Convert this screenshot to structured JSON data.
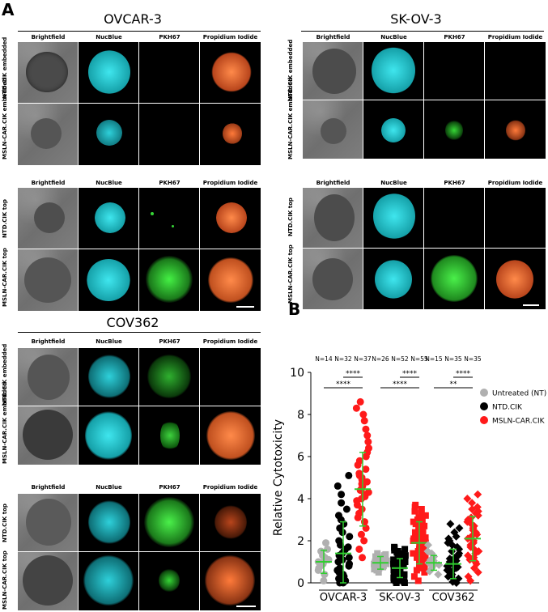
{
  "panel_a_letter": "A",
  "panel_b_letter": "B",
  "ovcar": {
    "title": "OVCAR-3",
    "embedded": {
      "columns": [
        "Brightfield",
        "NucBlue",
        "PKH67",
        "Propidium Iodide"
      ],
      "rows": [
        "NTD.CIK embedded",
        "MSLN-CAR.CIK embedded"
      ]
    },
    "top": {
      "columns": [
        "Brightfield",
        "NucBlue",
        "PKH67",
        "Propidium Iodide"
      ],
      "rows": [
        "NTD.CIK top",
        "MSLN-CAR.CIK top"
      ]
    }
  },
  "skov": {
    "title": "SK-OV-3",
    "embedded": {
      "columns": [
        "Brightfield",
        "NucBlue",
        "PKH67",
        "Propidium Iodide"
      ],
      "rows": [
        "NTD.CIK embedded",
        "MSLN-CAR.CIK embedded"
      ]
    },
    "top": {
      "columns": [
        "Brightfield",
        "NucBlue",
        "PKH67",
        "Propidium Iodide"
      ],
      "rows": [
        "NTD.CIK top",
        "MSLN-CAR.CIK top"
      ]
    }
  },
  "cov": {
    "title": "COV362",
    "embedded": {
      "columns": [
        "Brightfield",
        "NucBlue",
        "PKH67",
        "Propidium Iodide"
      ],
      "rows": [
        "NTD.CIK embedded",
        "MSLN-CAR.CIK embedded"
      ]
    },
    "top": {
      "columns": [
        "Brightfield",
        "NucBlue",
        "PKH67",
        "Propidium Iodide"
      ],
      "rows": [
        "NTD.CIK top",
        "MSLN-CAR.CIK top"
      ]
    }
  },
  "colors": {
    "nucblue": "#22c8d2",
    "pkh67": "#36d636",
    "pi": "#ff7a3a",
    "untreated": "#b0b0b0",
    "ntd": "#000000",
    "msln": "#ff1a1a",
    "mean_line": "#2fcf2f"
  },
  "chart_data": {
    "type": "scatter",
    "ylabel": "Relative Cytotoxicity",
    "ylim": [
      0,
      10
    ],
    "yticks": [
      0,
      2,
      4,
      6,
      8,
      10
    ],
    "categories": [
      "OVCAR-3",
      "SK-OV-3",
      "COV362"
    ],
    "n_labels": [
      "N=14",
      "N=32",
      "N=37",
      "N=26",
      "N=52",
      "N=55",
      "N=15",
      "N=35",
      "N=35"
    ],
    "legend": {
      "placement": "top-right",
      "entries": [
        "Untreated (NT)",
        "NTD.CIK",
        "MSLN-CAR.CIK"
      ]
    },
    "series": [
      {
        "name": "Untreated (NT)",
        "group": "OVCAR-3",
        "mean": 1.0,
        "sd": 0.55,
        "values": [
          0.1,
          0.4,
          0.7,
          0.8,
          0.9,
          1.0,
          1.0,
          1.1,
          1.2,
          1.3,
          1.5,
          1.6,
          1.9,
          0.6
        ]
      },
      {
        "name": "NTD.CIK",
        "group": "OVCAR-3",
        "mean": 1.4,
        "sd": 1.5,
        "values": [
          0,
          0,
          0.1,
          0.2,
          0.3,
          0.4,
          0.5,
          0.6,
          0.8,
          0.9,
          1.0,
          1.1,
          1.2,
          1.3,
          1.4,
          1.5,
          1.6,
          1.8,
          2.0,
          2.2,
          2.4,
          2.6,
          2.8,
          3.0,
          3.2,
          3.5,
          3.8,
          4.2,
          4.6,
          5.1,
          0.7,
          1.7
        ]
      },
      {
        "name": "MSLN-CAR.CIK",
        "group": "OVCAR-3",
        "mean": 4.45,
        "sd": 1.75,
        "values": [
          1.2,
          1.6,
          2.0,
          2.3,
          2.6,
          2.9,
          3.1,
          3.3,
          3.5,
          3.7,
          3.9,
          4.0,
          4.1,
          4.2,
          4.3,
          4.4,
          4.5,
          4.6,
          4.7,
          4.8,
          4.9,
          5.0,
          5.1,
          5.2,
          5.4,
          5.6,
          5.8,
          6.0,
          6.2,
          6.4,
          6.7,
          7.0,
          7.3,
          7.7,
          8.0,
          8.3,
          8.6
        ]
      },
      {
        "name": "Untreated (NT)",
        "group": "SK-OV-3",
        "mean": 0.95,
        "sd": 0.3,
        "values": [
          0.5,
          0.6,
          0.7,
          0.75,
          0.8,
          0.85,
          0.9,
          0.9,
          0.95,
          1.0,
          1.0,
          1.0,
          1.05,
          1.1,
          1.1,
          1.15,
          1.2,
          1.25,
          1.3,
          1.35,
          1.4,
          0.65,
          0.7,
          0.8,
          0.9,
          1.0
        ]
      },
      {
        "name": "NTD.CIK",
        "group": "SK-OV-3",
        "mean": 0.7,
        "sd": 0.45,
        "values": [
          0,
          0,
          0.05,
          0.1,
          0.15,
          0.2,
          0.25,
          0.3,
          0.35,
          0.4,
          0.45,
          0.5,
          0.55,
          0.6,
          0.6,
          0.65,
          0.7,
          0.7,
          0.75,
          0.8,
          0.8,
          0.85,
          0.9,
          0.9,
          0.95,
          1.0,
          1.0,
          1.05,
          1.1,
          1.1,
          1.15,
          1.2,
          1.2,
          1.25,
          1.3,
          1.35,
          1.4,
          1.45,
          1.5,
          1.55,
          1.6,
          1.65,
          1.7,
          0.3,
          0.5,
          0.6,
          0.4,
          0.2,
          0.1,
          0.9,
          1.0,
          0.7
        ]
      },
      {
        "name": "MSLN-CAR.CIK",
        "group": "SK-OV-3",
        "mean": 1.9,
        "sd": 1.0,
        "values": [
          0.1,
          0.3,
          0.5,
          0.7,
          0.9,
          1.0,
          1.1,
          1.2,
          1.3,
          1.4,
          1.5,
          1.6,
          1.7,
          1.75,
          1.8,
          1.85,
          1.9,
          1.95,
          2.0,
          2.05,
          2.1,
          2.15,
          2.2,
          2.25,
          2.3,
          2.35,
          2.4,
          2.5,
          2.6,
          2.7,
          2.8,
          2.9,
          3.0,
          3.1,
          3.2,
          3.3,
          3.4,
          3.5,
          3.6,
          3.7,
          1.0,
          1.2,
          1.4,
          1.6,
          1.8,
          2.0,
          2.2,
          2.4,
          2.6,
          2.8,
          3.0,
          0.6,
          0.8,
          1.9,
          2.1
        ]
      },
      {
        "name": "Untreated (NT)",
        "group": "COV362",
        "mean": 0.95,
        "sd": 0.35,
        "values": [
          0.4,
          0.55,
          0.7,
          0.8,
          0.85,
          0.9,
          0.95,
          1.0,
          1.05,
          1.1,
          1.15,
          1.25,
          1.4,
          1.5,
          1.8
        ]
      },
      {
        "name": "NTD.CIK",
        "group": "COV362",
        "mean": 0.9,
        "sd": 0.7,
        "values": [
          0,
          0.05,
          0.1,
          0.2,
          0.3,
          0.4,
          0.5,
          0.55,
          0.6,
          0.65,
          0.7,
          0.75,
          0.8,
          0.85,
          0.9,
          0.95,
          1.0,
          1.05,
          1.1,
          1.15,
          1.2,
          1.3,
          1.4,
          1.5,
          1.6,
          1.7,
          1.8,
          1.9,
          2.0,
          2.1,
          2.2,
          2.4,
          2.6,
          2.8,
          0.3
        ]
      },
      {
        "name": "MSLN-CAR.CIK",
        "group": "COV362",
        "mean": 2.1,
        "sd": 1.05,
        "values": [
          0.1,
          0.3,
          0.5,
          0.7,
          0.9,
          1.0,
          1.1,
          1.2,
          1.3,
          1.4,
          1.5,
          1.6,
          1.7,
          1.8,
          1.9,
          2.0,
          2.1,
          2.2,
          2.3,
          2.4,
          2.5,
          2.6,
          2.7,
          2.8,
          2.9,
          3.0,
          3.1,
          3.2,
          3.3,
          3.4,
          3.5,
          3.6,
          3.8,
          4.0,
          4.2
        ]
      }
    ],
    "significance": [
      {
        "label": "****",
        "group": "OVCAR-3",
        "between": [
          "Untreated (NT)",
          "MSLN-CAR.CIK"
        ]
      },
      {
        "label": "****",
        "group": "OVCAR-3",
        "between": [
          "NTD.CIK",
          "MSLN-CAR.CIK"
        ]
      },
      {
        "label": "****",
        "group": "SK-OV-3",
        "between": [
          "Untreated (NT)",
          "MSLN-CAR.CIK"
        ]
      },
      {
        "label": "****",
        "group": "SK-OV-3",
        "between": [
          "NTD.CIK",
          "MSLN-CAR.CIK"
        ]
      },
      {
        "label": "**",
        "group": "COV362",
        "between": [
          "Untreated (NT)",
          "MSLN-CAR.CIK"
        ]
      },
      {
        "label": "****",
        "group": "COV362",
        "between": [
          "NTD.CIK",
          "MSLN-CAR.CIK"
        ]
      }
    ]
  }
}
